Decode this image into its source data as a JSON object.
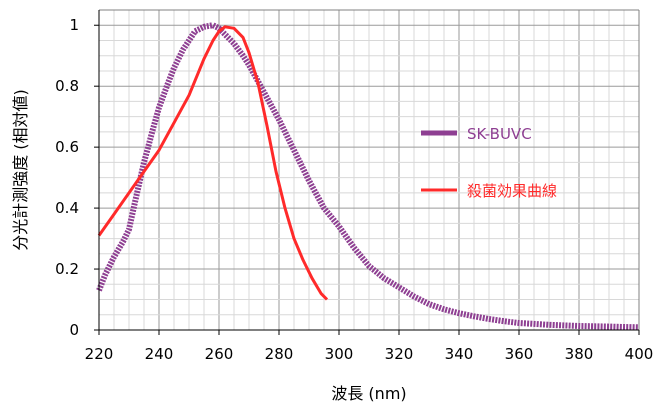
{
  "chart_data": {
    "type": "line",
    "xlabel": "波長 (nm)",
    "ylabel": "分光計測強度 (相対値)",
    "xlim": [
      220,
      400
    ],
    "ylim": [
      0,
      1.05
    ],
    "x_ticks": [
      "220",
      "240",
      "260",
      "280",
      "300",
      "320",
      "340",
      "360",
      "380",
      "400"
    ],
    "y_ticks": [
      "0",
      "0.2",
      "0.4",
      "0.6",
      "0.8",
      "1"
    ],
    "grid": true,
    "legend_position": "right",
    "series": [
      {
        "name": "SK-BUVC",
        "color": "#8e3f92",
        "x": [
          220,
          222,
          225,
          228,
          230,
          232,
          235,
          238,
          240,
          243,
          245,
          248,
          250,
          252,
          255,
          258,
          260,
          262,
          265,
          268,
          270,
          275,
          280,
          285,
          290,
          295,
          300,
          305,
          310,
          315,
          320,
          325,
          330,
          335,
          340,
          345,
          350,
          355,
          360,
          365,
          370,
          375,
          380,
          385,
          390,
          395,
          400
        ],
        "y": [
          0.13,
          0.18,
          0.24,
          0.29,
          0.33,
          0.42,
          0.55,
          0.66,
          0.73,
          0.81,
          0.86,
          0.92,
          0.95,
          0.98,
          0.995,
          1.0,
          0.99,
          0.97,
          0.94,
          0.9,
          0.87,
          0.78,
          0.69,
          0.59,
          0.49,
          0.4,
          0.34,
          0.27,
          0.21,
          0.17,
          0.14,
          0.11,
          0.085,
          0.068,
          0.055,
          0.045,
          0.036,
          0.029,
          0.023,
          0.02,
          0.017,
          0.015,
          0.013,
          0.012,
          0.011,
          0.01,
          0.009
        ]
      },
      {
        "name": "殺菌効果曲線",
        "color": "#ff2a2a",
        "x": [
          220,
          225,
          230,
          235,
          240,
          245,
          250,
          255,
          258,
          260,
          262,
          265,
          268,
          270,
          273,
          276,
          279,
          282,
          285,
          288,
          291,
          294,
          296
        ],
        "y": [
          0.31,
          0.38,
          0.45,
          0.52,
          0.59,
          0.68,
          0.77,
          0.89,
          0.95,
          0.98,
          0.995,
          0.99,
          0.96,
          0.91,
          0.81,
          0.67,
          0.52,
          0.4,
          0.3,
          0.23,
          0.17,
          0.12,
          0.1
        ]
      }
    ]
  }
}
